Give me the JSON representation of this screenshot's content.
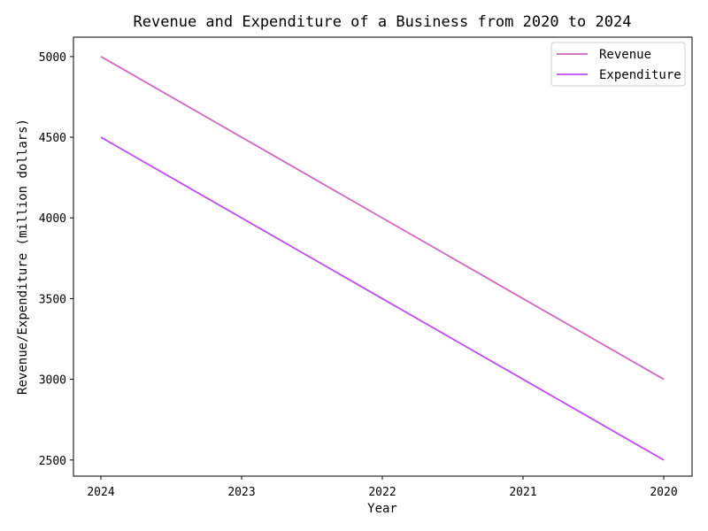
{
  "chart_data": {
    "type": "line",
    "title": "Revenue and Expenditure of a Business from 2020 to 2024",
    "xlabel": "Year",
    "ylabel": "Revenue/Expenditure (million dollars)",
    "categories": [
      "2024",
      "2023",
      "2022",
      "2021",
      "2020"
    ],
    "series": [
      {
        "name": "Revenue",
        "values": [
          5000,
          4500,
          4000,
          3500,
          3000
        ],
        "color": "#d067c0"
      },
      {
        "name": "Expenditure",
        "values": [
          4500,
          4000,
          3500,
          3000,
          2500
        ],
        "color": "#bf4cf2"
      }
    ],
    "yticks": [
      2500,
      3000,
      3500,
      4000,
      4500,
      5000
    ],
    "ylim": [
      2400,
      5120
    ],
    "grid": false,
    "legend_position": "top-right"
  }
}
